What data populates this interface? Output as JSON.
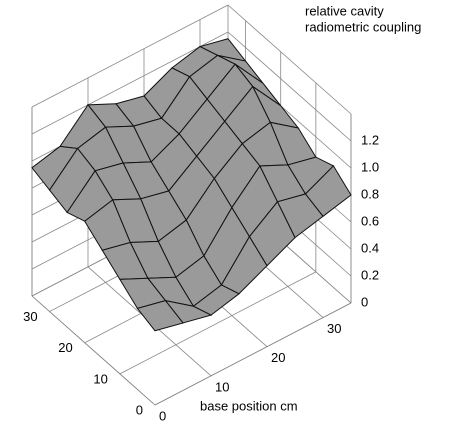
{
  "chart_data": {
    "type": "surface",
    "title": [
      "relative cavity",
      "radiometric coupling"
    ],
    "xlabel": "base position cm",
    "x": [
      0,
      5,
      10,
      15,
      20,
      25,
      30,
      35
    ],
    "y": [
      0,
      5,
      10,
      15,
      20,
      25,
      30,
      35
    ],
    "z": [
      [
        0.55,
        0.5,
        0.45,
        0.5,
        0.6,
        0.7,
        0.75,
        0.8
      ],
      [
        0.6,
        0.55,
        0.4,
        0.45,
        0.7,
        0.85,
        0.8,
        0.9
      ],
      [
        0.7,
        0.6,
        0.5,
        0.55,
        0.8,
        1.0,
        0.9,
        0.85
      ],
      [
        0.8,
        0.75,
        0.65,
        0.7,
        0.9,
        1.05,
        1.1,
        0.95
      ],
      [
        0.9,
        0.95,
        0.85,
        0.8,
        0.95,
        1.1,
        1.25,
        1.0
      ],
      [
        0.85,
        1.05,
        1.0,
        0.9,
        1.0,
        1.15,
        1.3,
        1.05
      ],
      [
        0.9,
        1.1,
        1.15,
        1.05,
        1.0,
        1.2,
        1.25,
        1.1
      ],
      [
        0.95,
        1.0,
        1.2,
        1.1,
        1.05,
        1.15,
        1.2,
        1.15
      ]
    ],
    "xlim": [
      0,
      35
    ],
    "ylim": [
      0,
      35
    ],
    "zlim": [
      0,
      1.4
    ],
    "xticks": [
      0,
      10,
      20,
      30
    ],
    "yticks": [
      0,
      10,
      20,
      30
    ],
    "zticks": [
      0,
      0.2,
      0.4,
      0.6,
      0.8,
      {
        "value": 1,
        "label": "1.0"
      },
      1.2
    ],
    "color": "#9a9a9a",
    "edgecolor": "#111111",
    "grid": true
  }
}
